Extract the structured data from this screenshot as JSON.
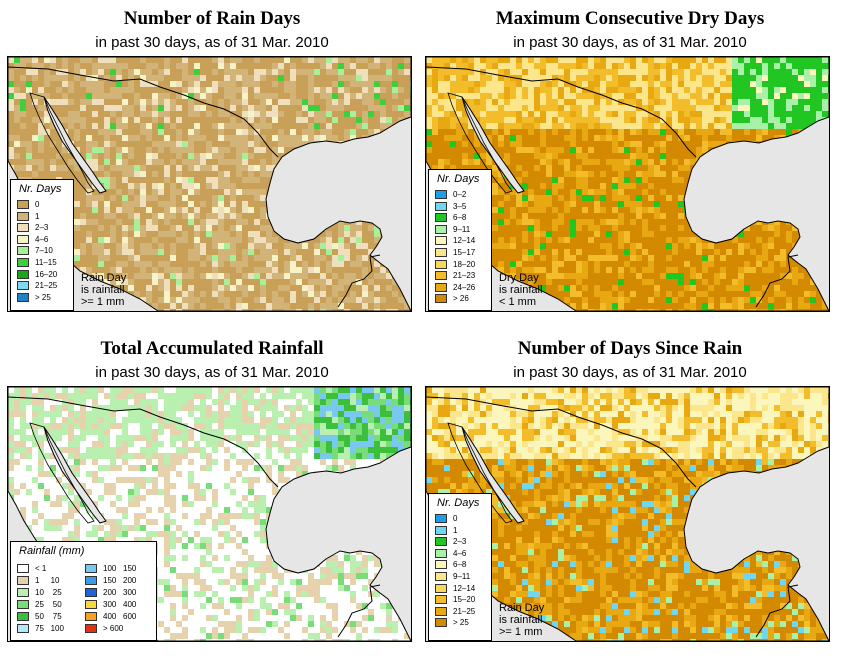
{
  "colors": {
    "ocean": "#e6e6e6",
    "border": "#000000"
  },
  "panels": [
    {
      "id": "rain-days",
      "title": "Number of Rain Days",
      "subtitle": "in past 30 days, as of  31 Mar. 2010",
      "dominant_class": 1,
      "legend": {
        "title": "Nr. Days",
        "items": [
          {
            "label": "0",
            "color": "#c8a058"
          },
          {
            "label": "1",
            "color": "#d2b478"
          },
          {
            "label": "2–3",
            "color": "#efdfbd"
          },
          {
            "label": "4–6",
            "color": "#f7f3c8"
          },
          {
            "label": "7–10",
            "color": "#a8ef9a"
          },
          {
            "label": "11–15",
            "color": "#3ecf3e"
          },
          {
            "label": "16–20",
            "color": "#1aa81a"
          },
          {
            "label": "21–25",
            "color": "#7fdcf0"
          },
          {
            "label": "> 25",
            "color": "#1e82c8"
          }
        ]
      },
      "note": "Rain Day\nis rainfall\n>= 1 mm"
    },
    {
      "id": "max-consecutive-dry-days",
      "title": "Maximum Consecutive Dry Days",
      "subtitle": "in past 30 days, as of  31 Mar. 2010",
      "dominant_class": 9,
      "legend": {
        "title": "Nr. Days",
        "items": [
          {
            "label": "0–2",
            "color": "#1e9ee6"
          },
          {
            "label": "3–5",
            "color": "#6fd7f0"
          },
          {
            "label": "6–8",
            "color": "#22c622"
          },
          {
            "label": "9–11",
            "color": "#a9f0a9"
          },
          {
            "label": "12–14",
            "color": "#fbf7bc"
          },
          {
            "label": "15–17",
            "color": "#fbe68c"
          },
          {
            "label": "18–20",
            "color": "#f8d85a"
          },
          {
            "label": "21–23",
            "color": "#f2bc2a"
          },
          {
            "label": "24–26",
            "color": "#e8a812"
          },
          {
            "label": "> 26",
            "color": "#d38a00"
          }
        ]
      },
      "note": "Dry Day\nis rainfall\n< 1 mm"
    },
    {
      "id": "total-accumulated-rainfall",
      "title": "Total Accumulated Rainfall",
      "subtitle": "in past 30 days, as of  31 Mar. 2010",
      "dominant_class": 0,
      "legend": {
        "title": "Rainfall (mm)",
        "items": [
          {
            "label": "< 1",
            "color": "#ffffff"
          },
          {
            "label": "1     10",
            "color": "#e6d2ad"
          },
          {
            "label": "10    25",
            "color": "#b9f0b0"
          },
          {
            "label": "25    50",
            "color": "#78dc78"
          },
          {
            "label": "50    75",
            "color": "#3cc03c"
          },
          {
            "label": "75   100",
            "color": "#b4e8f8"
          },
          {
            "label": "100   150",
            "color": "#78c8f0"
          },
          {
            "label": "150   200",
            "color": "#3c9be6"
          },
          {
            "label": "200   300",
            "color": "#1e64d2"
          },
          {
            "label": "300   400",
            "color": "#f8d840"
          },
          {
            "label": "400   600",
            "color": "#f8a020"
          },
          {
            "label": "> 600",
            "color": "#e83010"
          }
        ]
      },
      "note": ""
    },
    {
      "id": "days-since-rain",
      "title": "Number of Days Since Rain",
      "subtitle": "in past 30 days, as of  31 Mar. 2010",
      "dominant_class": 9,
      "legend": {
        "title": "Nr. Days",
        "items": [
          {
            "label": "0",
            "color": "#1e9ee6"
          },
          {
            "label": "1",
            "color": "#6fd7f0"
          },
          {
            "label": "2–3",
            "color": "#22c622"
          },
          {
            "label": "4–6",
            "color": "#a9f0a9"
          },
          {
            "label": "6–8",
            "color": "#fbf7bc"
          },
          {
            "label": "9–11",
            "color": "#fbe68c"
          },
          {
            "label": "12–14",
            "color": "#f8d85a"
          },
          {
            "label": "15–20",
            "color": "#f2bc2a"
          },
          {
            "label": "21–25",
            "color": "#e8a812"
          },
          {
            "label": "> 25",
            "color": "#d38a00"
          }
        ]
      },
      "note": "Rain Day\nis rainfall\n>= 1 mm"
    }
  ]
}
